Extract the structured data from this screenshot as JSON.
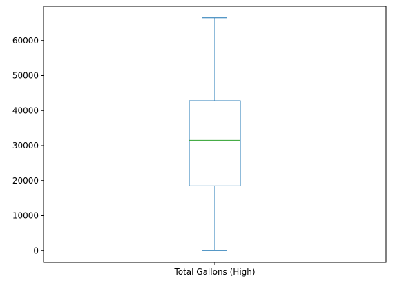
{
  "chart_data": {
    "type": "box",
    "title": "",
    "xlabel": "",
    "ylabel": "",
    "categories": [
      "Total Gallons (High)"
    ],
    "ylim": [
      -3300,
      69800
    ],
    "yticks": [
      0,
      10000,
      20000,
      30000,
      40000,
      50000,
      60000
    ],
    "ytick_labels": [
      "0",
      "10000",
      "20000",
      "30000",
      "40000",
      "50000",
      "60000"
    ],
    "boxes": [
      {
        "category": "Total Gallons (High)",
        "whisker_low": 0,
        "q1": 18500,
        "median": 31500,
        "q3": 42800,
        "whisker_high": 66500
      }
    ],
    "colors": {
      "box": "#1f77b4",
      "median": "#2ca02c",
      "axes": "#000000"
    },
    "grid": false
  }
}
